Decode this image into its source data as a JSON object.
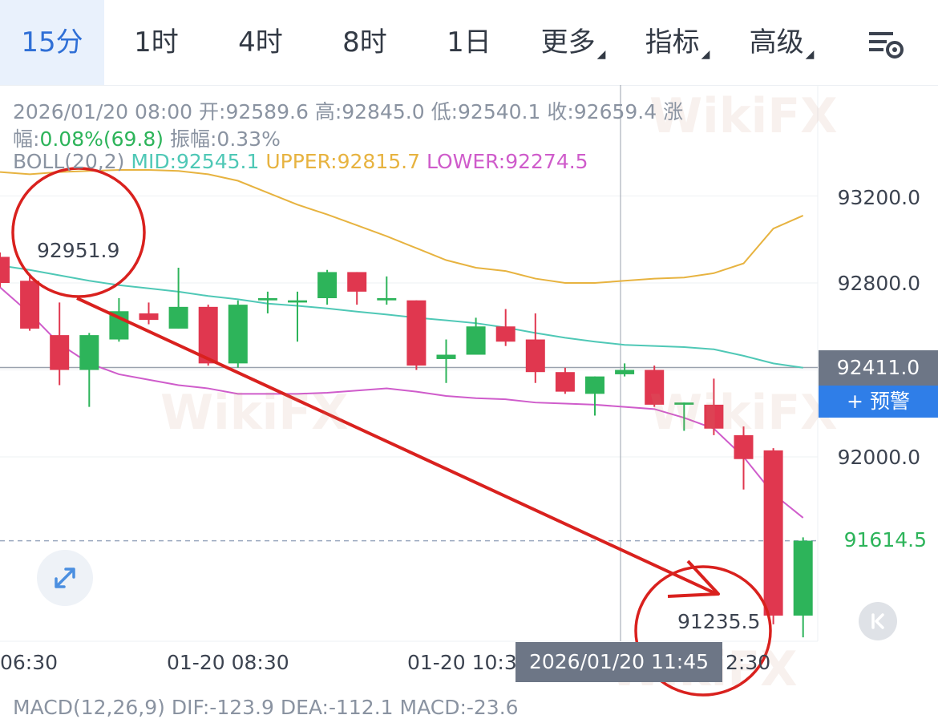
{
  "tabs": [
    {
      "label": "15分",
      "active": true
    },
    {
      "label": "1时"
    },
    {
      "label": "4时"
    },
    {
      "label": "8时"
    },
    {
      "label": "1日"
    },
    {
      "label": "更多",
      "dropdown": true
    },
    {
      "label": "指标",
      "dropdown": true
    },
    {
      "label": "高级",
      "dropdown": true
    }
  ],
  "settings_icon": "chart-settings-icon",
  "info": {
    "datetime": "2026/01/20 08:00",
    "open": "开:92589.6",
    "high": "高:92845.0",
    "low": "低:92540.1",
    "close": "收:92659.4",
    "change_label_1": "涨",
    "change_label_2": "幅:",
    "change_value": "0.08%(69.8)",
    "amplitude": "振幅:0.33%",
    "boll_name": "BOLL(20,2)",
    "boll_mid": "MID:92545.1",
    "boll_upper": "UPPER:92815.7",
    "boll_lower": "LOWER:92274.5"
  },
  "y_axis": [
    "93200.0",
    "92800.0",
    "92000.0"
  ],
  "current_price": "92411.0",
  "alert_button": "+ 预警",
  "last_price": "91614.5",
  "x_axis": [
    "06:30",
    "01-20 08:30",
    "01-20 10:3",
    "2:30"
  ],
  "x_hover_label": "2026/01/20 11:45",
  "macd": "MACD(12,26,9) DIF:-123.9 DEA:-112.1 MACD:-23.6",
  "annotations": {
    "high_label": "92951.9",
    "low_label": "91235.5"
  },
  "watermark": "WikiFX",
  "colors": {
    "up": "#2db45a",
    "down": "#e0374f",
    "mid": "#4fc8b6",
    "upper": "#e7b340",
    "lower": "#cf5ccb",
    "annotation": "#d9211e",
    "active_tab": "#2f6fd6"
  },
  "chart_data": {
    "type": "candlestick",
    "interval": "15分",
    "candles": [
      {
        "open": 92920,
        "close": 92800,
        "high": 92940,
        "low": 92780
      },
      {
        "open": 92810,
        "close": 92590,
        "high": 92830,
        "low": 92580
      },
      {
        "open": 92560,
        "close": 92400,
        "high": 92710,
        "low": 92330
      },
      {
        "open": 92400,
        "close": 92560,
        "high": 92570,
        "low": 92230
      },
      {
        "open": 92540,
        "close": 92670,
        "high": 92730,
        "low": 92530
      },
      {
        "open": 92660,
        "close": 92630,
        "high": 92710,
        "low": 92610
      },
      {
        "open": 92590,
        "close": 92690,
        "high": 92870,
        "low": 92590
      },
      {
        "open": 92690,
        "close": 92430,
        "high": 92700,
        "low": 92420
      },
      {
        "open": 92430,
        "close": 92700,
        "high": 92720,
        "low": 92410
      },
      {
        "open": 92720,
        "close": 92730,
        "high": 92760,
        "low": 92660
      },
      {
        "open": 92710,
        "close": 92720,
        "high": 92760,
        "low": 92530
      },
      {
        "open": 92730,
        "close": 92850,
        "high": 92860,
        "low": 92700
      },
      {
        "open": 92850,
        "close": 92760,
        "high": 92850,
        "low": 92700
      },
      {
        "open": 92720,
        "close": 92730,
        "high": 92830,
        "low": 92700
      },
      {
        "open": 92720,
        "close": 92420,
        "high": 92720,
        "low": 92400
      },
      {
        "open": 92450,
        "close": 92470,
        "high": 92540,
        "low": 92340
      },
      {
        "open": 92470,
        "close": 92600,
        "high": 92640,
        "low": 92470
      },
      {
        "open": 92600,
        "close": 92530,
        "high": 92680,
        "low": 92510
      },
      {
        "open": 92540,
        "close": 92390,
        "high": 92660,
        "low": 92340
      },
      {
        "open": 92390,
        "close": 92300,
        "high": 92410,
        "low": 92290
      },
      {
        "open": 92290,
        "close": 92370,
        "high": 92370,
        "low": 92190
      },
      {
        "open": 92380,
        "close": 92400,
        "high": 92430,
        "low": 92370
      },
      {
        "open": 92400,
        "close": 92240,
        "high": 92420,
        "low": 92230
      },
      {
        "open": 92240,
        "close": 92250,
        "high": 92250,
        "low": 92120
      },
      {
        "open": 92240,
        "close": 92130,
        "high": 92360,
        "low": 92100
      },
      {
        "open": 92100,
        "close": 91990,
        "high": 92140,
        "low": 91850
      },
      {
        "open": 92030,
        "close": 91270,
        "high": 92040,
        "low": 91230
      },
      {
        "open": 91270,
        "close": 91614.5,
        "high": 91630,
        "low": 91170
      }
    ],
    "boll_mid": [
      92880,
      92860,
      92835,
      92810,
      92790,
      92775,
      92760,
      92740,
      92725,
      92705,
      92695,
      92683,
      92668,
      92655,
      92640,
      92628,
      92615,
      92595,
      92570,
      92548,
      92530,
      92515,
      92510,
      92505,
      92495,
      92465,
      92430,
      92410
    ],
    "boll_upper": [
      93310,
      93300,
      93310,
      93315,
      93320,
      93320,
      93315,
      93300,
      93270,
      93215,
      93160,
      93115,
      93065,
      93015,
      92960,
      92905,
      92870,
      92855,
      92820,
      92800,
      92800,
      92810,
      92820,
      92825,
      92845,
      92890,
      93050,
      93110
    ],
    "boll_lower": [
      92780,
      92660,
      92520,
      92430,
      92380,
      92355,
      92330,
      92315,
      92290,
      92290,
      92290,
      92295,
      92305,
      92315,
      92300,
      92280,
      92270,
      92265,
      92250,
      92245,
      92240,
      92230,
      92220,
      92180,
      92130,
      92000,
      91830,
      91720
    ],
    "y_ticks": [
      93200.0,
      92800.0,
      92000.0
    ],
    "current_price": 92411.0,
    "last_price": 91614.5,
    "high_marker": 92951.9,
    "low_marker": 91235.5
  }
}
